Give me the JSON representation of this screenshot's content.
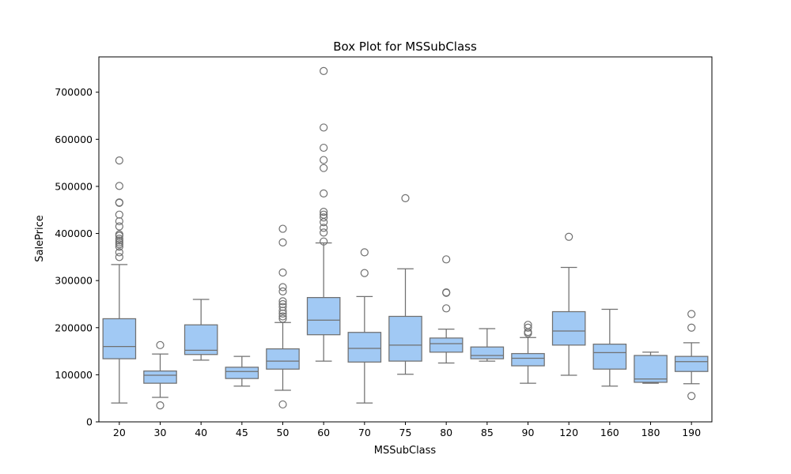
{
  "chart_data": {
    "type": "box",
    "title": "Box Plot for MSSubClass",
    "xlabel": "MSSubClass",
    "ylabel": "SalePrice",
    "ylim": [
      0,
      775000
    ],
    "yticks": [
      0,
      100000,
      200000,
      300000,
      400000,
      500000,
      600000,
      700000
    ],
    "grid": false,
    "colors": {
      "box_fill": "#a1c9f4",
      "line": "#707070"
    },
    "categories": [
      "20",
      "30",
      "40",
      "45",
      "50",
      "60",
      "70",
      "75",
      "80",
      "85",
      "90",
      "120",
      "160",
      "180",
      "190"
    ],
    "boxes": [
      {
        "category": "20",
        "whisker_low": 40000,
        "q1": 134000,
        "median": 160000,
        "q3": 219000,
        "whisker_high": 334000,
        "outliers": [
          350000,
          360000,
          372000,
          377000,
          381000,
          385000,
          389000,
          395000,
          398000,
          415000,
          426000,
          440000,
          465000,
          466000,
          501000,
          555000
        ]
      },
      {
        "category": "30",
        "whisker_low": 52000,
        "q1": 82000,
        "median": 99000,
        "q3": 108000,
        "whisker_high": 144000,
        "outliers": [
          35000,
          163000
        ]
      },
      {
        "category": "40",
        "whisker_low": 131000,
        "q1": 143000,
        "median": 152000,
        "q3": 206000,
        "whisker_high": 260000,
        "outliers": []
      },
      {
        "category": "45",
        "whisker_low": 76000,
        "q1": 92000,
        "median": 107000,
        "q3": 116000,
        "whisker_high": 139000,
        "outliers": []
      },
      {
        "category": "50",
        "whisker_low": 67000,
        "q1": 112000,
        "median": 129000,
        "q3": 155000,
        "whisker_high": 211000,
        "outliers": [
          37000,
          219000,
          224000,
          230000,
          236000,
          244000,
          250000,
          256000,
          277000,
          286000,
          317000,
          381000,
          410000
        ]
      },
      {
        "category": "60",
        "whisker_low": 129000,
        "q1": 185000,
        "median": 216000,
        "q3": 264000,
        "whisker_high": 380000,
        "outliers": [
          383000,
          402000,
          412000,
          424000,
          434000,
          440000,
          446000,
          485000,
          539000,
          556000,
          582000,
          625000,
          745000
        ]
      },
      {
        "category": "70",
        "whisker_low": 40000,
        "q1": 127000,
        "median": 156000,
        "q3": 190000,
        "whisker_high": 266000,
        "outliers": [
          316000,
          360000
        ]
      },
      {
        "category": "75",
        "whisker_low": 101000,
        "q1": 129000,
        "median": 163000,
        "q3": 224000,
        "whisker_high": 325000,
        "outliers": [
          475000
        ]
      },
      {
        "category": "80",
        "whisker_low": 125000,
        "q1": 148000,
        "median": 166000,
        "q3": 178000,
        "whisker_high": 197000,
        "outliers": [
          241000,
          274000,
          275000,
          345000
        ]
      },
      {
        "category": "85",
        "whisker_low": 129000,
        "q1": 134000,
        "median": 141000,
        "q3": 159000,
        "whisker_high": 198000,
        "outliers": []
      },
      {
        "category": "90",
        "whisker_low": 82000,
        "q1": 119000,
        "median": 135000,
        "q3": 145000,
        "whisker_high": 179000,
        "outliers": [
          188000,
          191000,
          200000,
          206000
        ]
      },
      {
        "category": "120",
        "whisker_low": 99000,
        "q1": 163000,
        "median": 193000,
        "q3": 234000,
        "whisker_high": 328000,
        "outliers": [
          393000
        ]
      },
      {
        "category": "160",
        "whisker_low": 76000,
        "q1": 112000,
        "median": 147000,
        "q3": 165000,
        "whisker_high": 239000,
        "outliers": []
      },
      {
        "category": "180",
        "whisker_low": 82000,
        "q1": 84000,
        "median": 91000,
        "q3": 141000,
        "whisker_high": 148000,
        "outliers": []
      },
      {
        "category": "190",
        "whisker_low": 81000,
        "q1": 107000,
        "median": 128000,
        "q3": 139000,
        "whisker_high": 168000,
        "outliers": [
          55000,
          200000,
          229000
        ]
      }
    ]
  }
}
